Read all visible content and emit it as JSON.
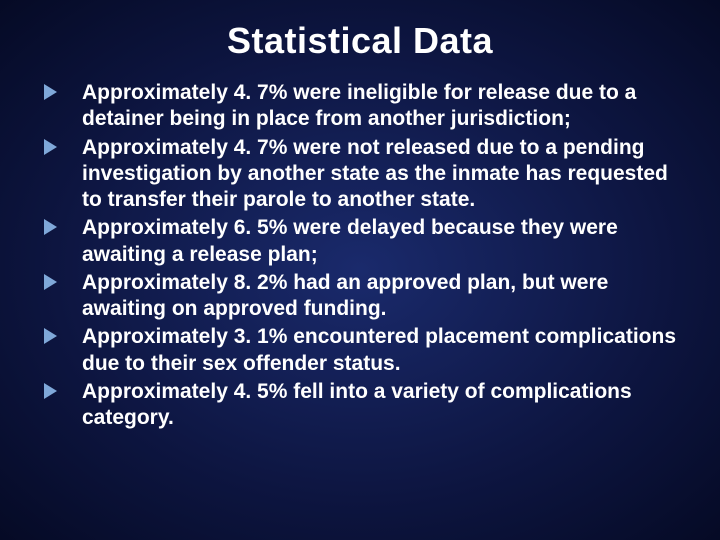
{
  "slide": {
    "title": "Statistical Data",
    "background": {
      "gradient_center": "#1a2a6c",
      "gradient_mid": "#0d1540",
      "gradient_edge": "#050a25"
    },
    "title_style": {
      "color": "#ffffff",
      "fontsize_pt": 36,
      "font_weight": 700,
      "font_family": "Century Gothic"
    },
    "bullet_style": {
      "marker_shape": "triangle-right",
      "marker_color": "#7fa8d9",
      "text_color": "#ffffff",
      "fontsize_pt": 21,
      "font_weight": 700,
      "line_height": 1.25
    },
    "bullets": [
      "Approximately 4. 7% were ineligible for release due to a detainer being in place from another jurisdiction;",
      "Approximately 4. 7% were not released due to a pending investigation by another state as the inmate has requested to transfer their parole to another state.",
      "Approximately 6. 5% were delayed because they were awaiting a release plan;",
      "Approximately 8. 2% had an approved plan, but were awaiting on approved funding.",
      "Approximately 3. 1% encountered placement complications due to their sex offender status.",
      "Approximately 4. 5% fell into a variety of complications category."
    ]
  }
}
